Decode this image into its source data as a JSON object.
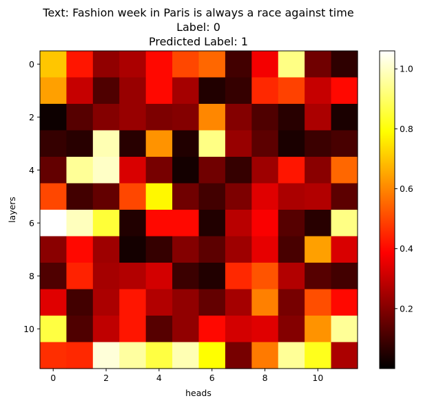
{
  "chart_data": {
    "type": "heatmap",
    "title_lines": [
      "Text: Fashion week in Paris is always a race against time",
      "Label: 0",
      "Predicted Label: 1"
    ],
    "xlabel": "heads",
    "ylabel": "layers",
    "x_ticks": [
      0,
      2,
      4,
      6,
      8,
      10
    ],
    "y_ticks": [
      0,
      2,
      4,
      6,
      8,
      10
    ],
    "colormap": "hot",
    "colorbar": {
      "range": [
        0.0,
        1.06
      ],
      "ticks": [
        0.2,
        0.4,
        0.6,
        0.8,
        1.0
      ]
    },
    "values": [
      [
        0.7,
        0.42,
        0.22,
        0.26,
        0.4,
        0.5,
        0.55,
        0.1,
        0.37,
        0.93,
        0.17,
        0.07
      ],
      [
        0.64,
        0.3,
        0.12,
        0.23,
        0.4,
        0.25,
        0.05,
        0.08,
        0.45,
        0.49,
        0.3,
        0.4
      ],
      [
        0.02,
        0.13,
        0.2,
        0.23,
        0.19,
        0.2,
        0.6,
        0.2,
        0.12,
        0.06,
        0.26,
        0.04
      ],
      [
        0.08,
        0.06,
        0.98,
        0.06,
        0.62,
        0.05,
        0.93,
        0.23,
        0.14,
        0.04,
        0.09,
        0.11
      ],
      [
        0.15,
        0.95,
        1.0,
        0.33,
        0.18,
        0.03,
        0.17,
        0.08,
        0.24,
        0.42,
        0.21,
        0.55
      ],
      [
        0.5,
        0.1,
        0.15,
        0.5,
        0.78,
        0.17,
        0.1,
        0.19,
        0.34,
        0.26,
        0.27,
        0.14
      ],
      [
        1.06,
        0.99,
        0.85,
        0.05,
        0.4,
        0.4,
        0.05,
        0.28,
        0.38,
        0.13,
        0.06,
        0.93
      ],
      [
        0.21,
        0.4,
        0.24,
        0.03,
        0.08,
        0.2,
        0.14,
        0.24,
        0.35,
        0.11,
        0.64,
        0.33
      ],
      [
        0.12,
        0.44,
        0.25,
        0.27,
        0.32,
        0.09,
        0.05,
        0.45,
        0.52,
        0.27,
        0.13,
        0.1
      ],
      [
        0.34,
        0.1,
        0.26,
        0.42,
        0.27,
        0.22,
        0.15,
        0.25,
        0.59,
        0.18,
        0.51,
        0.4
      ],
      [
        0.86,
        0.12,
        0.29,
        0.42,
        0.13,
        0.22,
        0.4,
        0.32,
        0.34,
        0.2,
        0.62,
        0.95
      ],
      [
        0.46,
        0.45,
        1.02,
        0.96,
        0.86,
        0.98,
        0.79,
        0.18,
        0.58,
        0.95,
        0.82,
        0.26
      ]
    ]
  }
}
